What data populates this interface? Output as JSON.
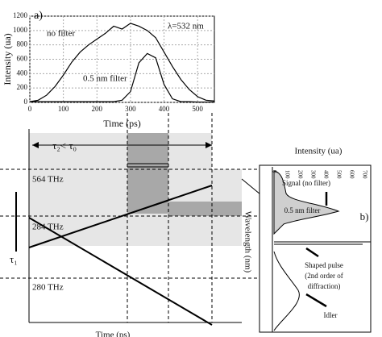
{
  "chart_data": {
    "type": "line",
    "panel_label": "a)",
    "annotation": "λ=532 nm",
    "xlabel": "Time (ps)",
    "ylabel": "Intensity (ua)",
    "xlim": [
      0,
      550
    ],
    "xticks": [
      0,
      100,
      200,
      300,
      400,
      500
    ],
    "ylim": [
      0,
      1200
    ],
    "yticks": [
      0,
      200,
      400,
      600,
      800,
      1000,
      1200
    ],
    "grid": true,
    "x": [
      0,
      25,
      50,
      75,
      100,
      125,
      150,
      175,
      200,
      225,
      250,
      275,
      300,
      325,
      350,
      375,
      400,
      425,
      450,
      475,
      500,
      525,
      550
    ],
    "series": [
      {
        "name": "no filter",
        "color": "#000000",
        "values": [
          10,
          30,
          100,
          220,
          380,
          560,
          700,
          800,
          880,
          960,
          1060,
          1020,
          1100,
          1060,
          1000,
          900,
          700,
          500,
          320,
          180,
          80,
          30,
          20
        ]
      },
      {
        "name": "0.5 nm filter",
        "color": "#000000",
        "values": [
          10,
          10,
          10,
          10,
          10,
          10,
          10,
          10,
          10,
          10,
          10,
          30,
          150,
          550,
          680,
          620,
          250,
          50,
          10,
          10,
          5,
          5,
          5
        ]
      }
    ]
  },
  "diagram": {
    "tau_label": "τ₂< τ₀",
    "tau1_label": "τ₁",
    "freq_top": "564 THz",
    "freq_mid": "284 THz",
    "freq_low": "280 THz",
    "xlabel": "Time (ps)"
  },
  "panel_b": {
    "panel_label": "b)",
    "intensity_label": "Intensity (ua)",
    "intensity_ticks": [
      0,
      100,
      200,
      300,
      400,
      500,
      600,
      700
    ],
    "wavelength_label": "Wavelength (nm)",
    "signal_label": "Signal (no filter)",
    "filter_label": "0.5 nm filter",
    "shaped_label": "Shaped pulse",
    "shaped_detail_1": "(2nd order of",
    "shaped_detail_2": "diffraction)",
    "idler_label": "Idler"
  }
}
